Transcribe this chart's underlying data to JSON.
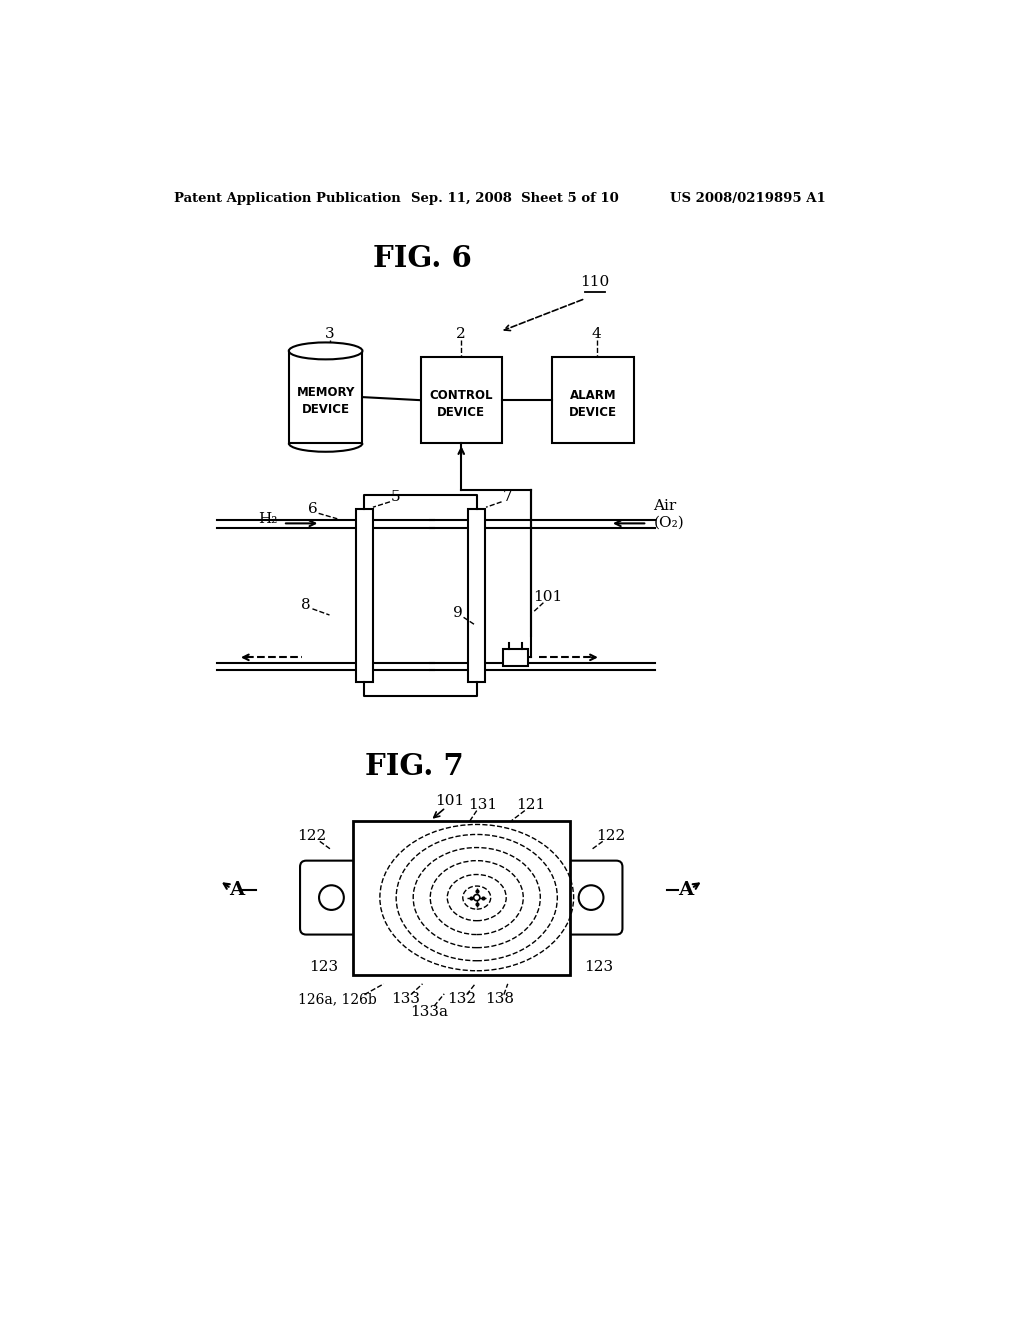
{
  "bg_color": "#ffffff",
  "header_left": "Patent Application Publication",
  "header_mid": "Sep. 11, 2008  Sheet 5 of 10",
  "header_right": "US 2008/0219895 A1",
  "fig6_title": "FIG. 6",
  "fig7_title": "FIG. 7",
  "label_110": "110",
  "label_3": "3",
  "label_2": "2",
  "label_4": "4",
  "label_5": "5",
  "label_6": "6",
  "label_7": "7",
  "label_8": "8",
  "label_9": "9",
  "label_101_fig6": "101",
  "memory_text": "MEMORY\nDEVICE",
  "control_text": "CONTROL\nDEVICE",
  "alarm_text": "ALARM\nDEVICE",
  "H2_label": "H₂",
  "air_label": "Air\n(O₂)",
  "fig7_labels": {
    "101": "101",
    "122_left": "122",
    "122_right": "122",
    "123_left": "123",
    "123_right": "123",
    "121": "121",
    "131": "131",
    "132": "132",
    "133": "133",
    "133a": "133a",
    "138": "138",
    "126ab": "126a, 126b",
    "A_left": "A",
    "A_right": "A"
  }
}
